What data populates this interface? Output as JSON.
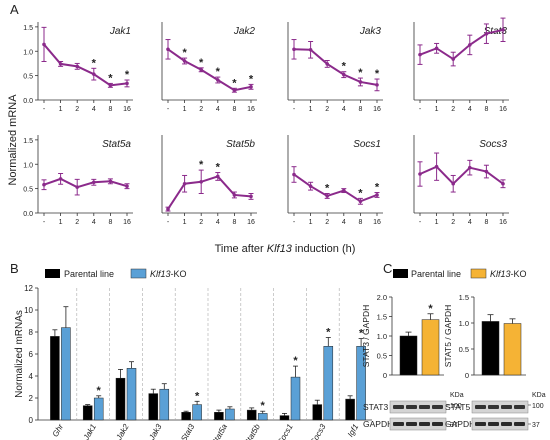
{
  "colors": {
    "line": "#8b2a8b",
    "parental": "#000000",
    "ko_blue": "#5aa0d6",
    "ko_orange": "#f5b335"
  },
  "panel_labels": {
    "a": "A",
    "b": "B",
    "c": "C"
  },
  "chart_data": [
    {
      "id": "A",
      "type": "line",
      "ylabel": "Normalized mRNA",
      "xlabel_parts": [
        "Time after ",
        "Klf13",
        " induction (h)"
      ],
      "categories": [
        "-",
        "1",
        "2",
        "4",
        "8",
        "16"
      ],
      "ylim": [
        0,
        1.6
      ],
      "grid": false,
      "subplots": [
        {
          "name": "Jak1",
          "values": [
            1.14,
            0.74,
            0.69,
            0.53,
            0.3,
            0.34
          ],
          "errors": [
            0.35,
            0.05,
            0.06,
            0.12,
            0.04,
            0.07
          ],
          "sig": [
            false,
            false,
            false,
            true,
            true,
            true
          ]
        },
        {
          "name": "Jak2",
          "values": [
            1.04,
            0.8,
            0.62,
            0.41,
            0.2,
            0.27
          ],
          "errors": [
            0.2,
            0.06,
            0.04,
            0.06,
            0.04,
            0.05
          ],
          "sig": [
            false,
            true,
            true,
            true,
            true,
            true
          ]
        },
        {
          "name": "Jak3",
          "values": [
            1.04,
            1.03,
            0.74,
            0.52,
            0.37,
            0.31
          ],
          "errors": [
            0.2,
            0.17,
            0.07,
            0.06,
            0.08,
            0.12
          ],
          "sig": [
            false,
            false,
            false,
            true,
            true,
            true
          ]
        },
        {
          "name": "Stat3",
          "values": [
            0.93,
            1.06,
            0.84,
            1.13,
            1.36,
            1.44
          ],
          "errors": [
            0.2,
            0.1,
            0.14,
            0.2,
            0.2,
            0.24
          ],
          "sig": [
            false,
            false,
            false,
            false,
            false,
            false
          ]
        },
        {
          "name": "Stat5a",
          "values": [
            0.58,
            0.7,
            0.53,
            0.63,
            0.65,
            0.55
          ],
          "errors": [
            0.1,
            0.11,
            0.16,
            0.06,
            0.05,
            0.05
          ],
          "sig": [
            false,
            false,
            false,
            false,
            false,
            false
          ]
        },
        {
          "name": "Stat5b",
          "values": [
            0.08,
            0.6,
            0.64,
            0.75,
            0.37,
            0.34
          ],
          "errors": [
            0.04,
            0.17,
            0.24,
            0.08,
            0.06,
            0.06
          ],
          "sig": [
            false,
            false,
            true,
            true,
            false,
            false
          ]
        },
        {
          "name": "Socs1",
          "values": [
            0.79,
            0.55,
            0.35,
            0.46,
            0.24,
            0.37
          ],
          "errors": [
            0.16,
            0.08,
            0.05,
            0.04,
            0.06,
            0.05
          ],
          "sig": [
            false,
            false,
            true,
            false,
            true,
            true
          ]
        },
        {
          "name": "Socs3",
          "values": [
            0.8,
            0.95,
            0.6,
            0.93,
            0.85,
            0.6
          ],
          "errors": [
            0.25,
            0.28,
            0.17,
            0.15,
            0.13,
            0.08
          ],
          "sig": [
            false,
            false,
            false,
            false,
            false,
            false
          ]
        }
      ]
    },
    {
      "id": "B",
      "type": "bar",
      "ylabel": "Normalized mRNAs",
      "ylim": [
        0,
        12
      ],
      "yticks": [
        0,
        2,
        4,
        6,
        8,
        10,
        12
      ],
      "categories": [
        "Ghr",
        "Jak1",
        "Jak2",
        "Jak3",
        "Stat3",
        "Stat5a",
        "Stat5b",
        "Socs1",
        "Socs3",
        "Igf1"
      ],
      "legend": [
        "Parental line",
        "Klf13-KO"
      ],
      "series": [
        {
          "name": "Parental line",
          "values": [
            7.6,
            1.3,
            3.8,
            2.4,
            0.7,
            0.7,
            0.9,
            0.4,
            1.4,
            1.9
          ],
          "errors": [
            0.6,
            0.1,
            0.8,
            0.4,
            0.1,
            0.2,
            0.2,
            0.2,
            0.4,
            0.3
          ]
        },
        {
          "name": "Klf13-KO",
          "values": [
            8.4,
            2.0,
            4.7,
            2.8,
            1.4,
            1.0,
            0.6,
            3.9,
            6.7,
            6.7
          ],
          "errors": [
            1.9,
            0.2,
            0.6,
            0.5,
            0.3,
            0.2,
            0.2,
            1.0,
            0.8,
            0.7
          ]
        }
      ],
      "sig": [
        false,
        true,
        false,
        false,
        true,
        false,
        true,
        true,
        true,
        true
      ]
    },
    {
      "id": "C",
      "type": "bar",
      "legend": [
        "Parental line",
        "Klf13-KO"
      ],
      "subplots": [
        {
          "ylabel": "STAT3 / GAPDH",
          "ylim": [
            0,
            2.0
          ],
          "yticks": [
            0,
            0.5,
            1.0,
            1.5,
            2.0
          ],
          "values": [
            1.0,
            1.42
          ],
          "errors": [
            0.1,
            0.15
          ],
          "sig": [
            false,
            true
          ],
          "blot_labels": [
            "STAT3",
            "GAPDH"
          ],
          "kda_marks": [
            "100",
            "37"
          ]
        },
        {
          "ylabel": "STAT5 / GAPDH",
          "ylim": [
            0,
            1.5
          ],
          "yticks": [
            0,
            0.5,
            1.0,
            1.5
          ],
          "values": [
            1.03,
            0.99
          ],
          "errors": [
            0.13,
            0.09
          ],
          "sig": [
            false,
            false
          ],
          "blot_labels": [
            "STAT5",
            "GAPDH"
          ],
          "kda_marks": [
            "100",
            "37"
          ]
        }
      ],
      "kda_unit": "KDa"
    }
  ]
}
